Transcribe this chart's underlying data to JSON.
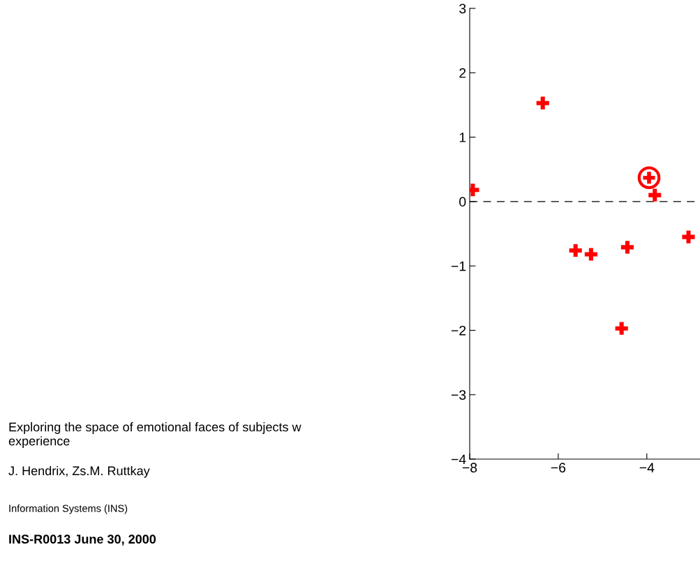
{
  "chart_data": {
    "type": "scatter",
    "series": [
      {
        "color": "#ff0000",
        "marker": "cross",
        "x": [
          -7.93,
          -6.35,
          -5.61,
          -5.26,
          -4.44,
          -4.57,
          -3.82,
          -3.06
        ],
        "values": [
          0.18,
          1.53,
          -0.76,
          -0.82,
          -0.71,
          -1.97,
          0.1,
          -0.55
        ]
      },
      {
        "color": "#ff0000",
        "marker": "circle",
        "x": [
          -3.95
        ],
        "values": [
          0.37
        ]
      }
    ],
    "xlim": [
      -8,
      -2.8
    ],
    "ylim": [
      -4,
      3
    ],
    "xticks": [
      -8,
      -6,
      -4
    ],
    "yticks": [
      -4,
      -3,
      -2,
      -1,
      0,
      1,
      2,
      3
    ],
    "ref_lines": [
      {
        "axis": "y",
        "value": 0,
        "color": "#000000",
        "line_style": "dashed"
      }
    ],
    "grid": false,
    "legend": false,
    "annotations": [
      "Exploring the space of emotional faces of subjects w\nexperience",
      "J. Hendrix, Zs.M. Ruttkay",
      "Information Systems (INS)",
      "INS-R0013 June 30, 2000"
    ]
  }
}
